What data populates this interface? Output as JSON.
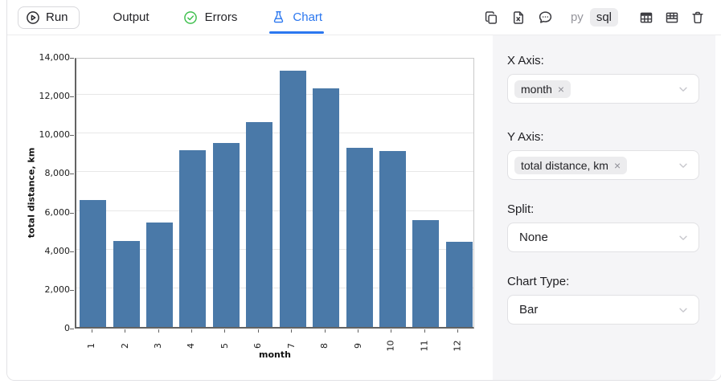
{
  "toolbar": {
    "run_label": "Run",
    "tabs": [
      {
        "label": "Output"
      },
      {
        "label": "Errors"
      },
      {
        "label": "Chart"
      }
    ],
    "lang_py": "py",
    "lang_sql": "sql"
  },
  "panel": {
    "x_axis_label": "X Axis:",
    "x_axis_value": "month",
    "y_axis_label": "Y Axis:",
    "y_axis_value": "total distance, km",
    "split_label": "Split:",
    "split_value": "None",
    "chart_type_label": "Chart Type:",
    "chart_type_value": "Bar",
    "tag_close": "×"
  },
  "colors": {
    "accent_blue": "#2b77ef",
    "success_green": "#3ebf4d",
    "bar_fill": "#4a79a8",
    "panel_bg": "#f5f5f7"
  },
  "chart_data": {
    "type": "bar",
    "categories": [
      "1",
      "2",
      "3",
      "4",
      "5",
      "6",
      "7",
      "8",
      "9",
      "10",
      "11",
      "12"
    ],
    "values": [
      6580,
      4430,
      5400,
      9120,
      9520,
      10600,
      13270,
      12340,
      9270,
      9080,
      5530,
      4400
    ],
    "title": "",
    "xlabel": "month",
    "ylabel": "total distance, km",
    "ylim": [
      0,
      14000
    ],
    "ytick_step": 2000,
    "grid": true,
    "legend": false,
    "bar_color": "#4a79a8"
  }
}
